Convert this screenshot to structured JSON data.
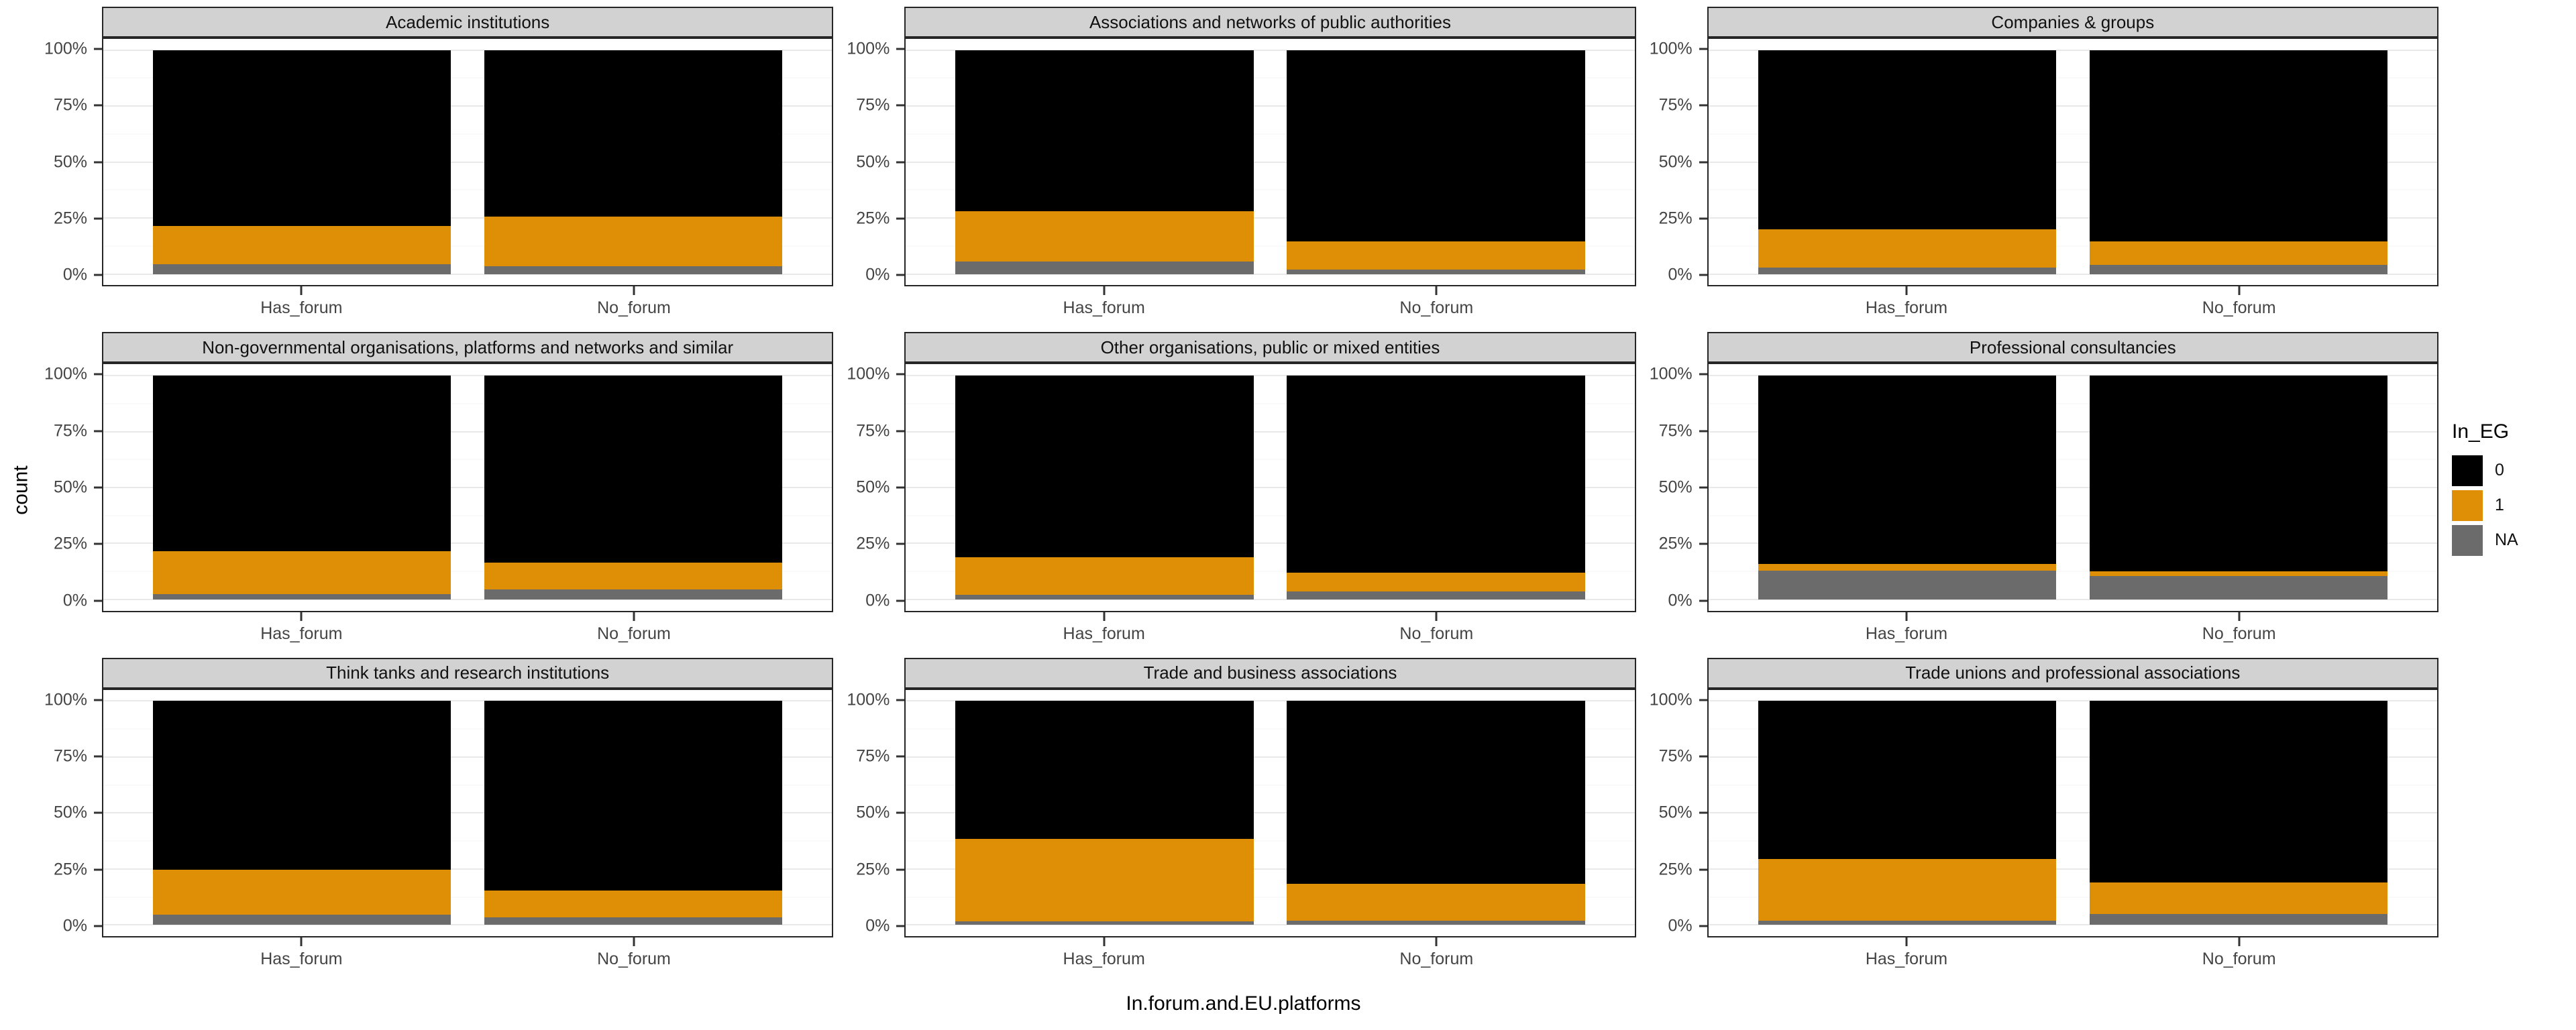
{
  "figure": {
    "ylabel": "count",
    "xlabel": "In.forum.and.EU.platforms"
  },
  "chart_data": {
    "type": "bar",
    "stacked": true,
    "normalized_percent": true,
    "facet_layout": "3x3",
    "ylabel": "count",
    "xlabel": "In.forum.and.EU.platforms",
    "categories": [
      "Has_forum",
      "No_forum"
    ],
    "fill_variable": "In_EG",
    "fill_levels": [
      "0",
      "1",
      "NA"
    ],
    "colors": {
      "0": "#000000",
      "1": "#DE8F05",
      "NA": "#6B6B6B"
    },
    "y_axis": {
      "ticks": [
        "0%",
        "25%",
        "50%",
        "75%",
        "100%"
      ],
      "tick_values": [
        0,
        25,
        50,
        75,
        100
      ],
      "minor_tick_values": [
        12.5,
        37.5,
        62.5,
        87.5
      ],
      "range": [
        0,
        100
      ],
      "grid": true
    },
    "legend": {
      "title": "In_EG",
      "position": "right",
      "entries": [
        {
          "label": "0",
          "color": "#000000"
        },
        {
          "label": "1",
          "color": "#DE8F05"
        },
        {
          "label": "NA",
          "color": "#6B6B6B"
        }
      ]
    },
    "panels": [
      {
        "title": "Academic institutions",
        "bars": [
          {
            "category": "Has_forum",
            "values": {
              "0": 78.5,
              "1": 17.0,
              "NA": 4.5
            }
          },
          {
            "category": "No_forum",
            "values": {
              "0": 74.5,
              "1": 22.0,
              "NA": 3.5
            }
          }
        ]
      },
      {
        "title": "Associations and networks of public authorities",
        "bars": [
          {
            "category": "Has_forum",
            "values": {
              "0": 72.0,
              "1": 22.5,
              "NA": 5.5
            }
          },
          {
            "category": "No_forum",
            "values": {
              "0": 85.5,
              "1": 12.5,
              "NA": 2.0
            }
          }
        ]
      },
      {
        "title": "Companies & groups",
        "bars": [
          {
            "category": "Has_forum",
            "values": {
              "0": 80.0,
              "1": 17.0,
              "NA": 3.0
            }
          },
          {
            "category": "No_forum",
            "values": {
              "0": 85.5,
              "1": 10.5,
              "NA": 4.0
            }
          }
        ]
      },
      {
        "title": "Non-governmental organisations, platforms and networks and similar",
        "bars": [
          {
            "category": "Has_forum",
            "values": {
              "0": 78.5,
              "1": 19.0,
              "NA": 2.5
            }
          },
          {
            "category": "No_forum",
            "values": {
              "0": 83.5,
              "1": 12.0,
              "NA": 4.5
            }
          }
        ]
      },
      {
        "title": "Other organisations, public or mixed entities",
        "bars": [
          {
            "category": "Has_forum",
            "values": {
              "0": 81.0,
              "1": 17.0,
              "NA": 2.0
            }
          },
          {
            "category": "No_forum",
            "values": {
              "0": 88.0,
              "1": 8.5,
              "NA": 3.5
            }
          }
        ]
      },
      {
        "title": "Professional consultancies",
        "bars": [
          {
            "category": "Has_forum",
            "values": {
              "0": 84.0,
              "1": 3.0,
              "NA": 13.0
            }
          },
          {
            "category": "No_forum",
            "values": {
              "0": 87.5,
              "1": 2.0,
              "NA": 10.5
            }
          }
        ]
      },
      {
        "title": "Think tanks and research institutions",
        "bars": [
          {
            "category": "Has_forum",
            "values": {
              "0": 75.5,
              "1": 20.0,
              "NA": 4.5
            }
          },
          {
            "category": "No_forum",
            "values": {
              "0": 84.5,
              "1": 12.0,
              "NA": 3.5
            }
          }
        ]
      },
      {
        "title": "Trade and business associations",
        "bars": [
          {
            "category": "Has_forum",
            "values": {
              "0": 61.5,
              "1": 37.0,
              "NA": 1.5
            }
          },
          {
            "category": "No_forum",
            "values": {
              "0": 81.5,
              "1": 16.5,
              "NA": 2.0
            }
          }
        ]
      },
      {
        "title": "Trade unions and professional associations",
        "bars": [
          {
            "category": "Has_forum",
            "values": {
              "0": 70.5,
              "1": 27.5,
              "NA": 2.0
            }
          },
          {
            "category": "No_forum",
            "values": {
              "0": 81.0,
              "1": 14.0,
              "NA": 5.0
            }
          }
        ]
      }
    ]
  }
}
